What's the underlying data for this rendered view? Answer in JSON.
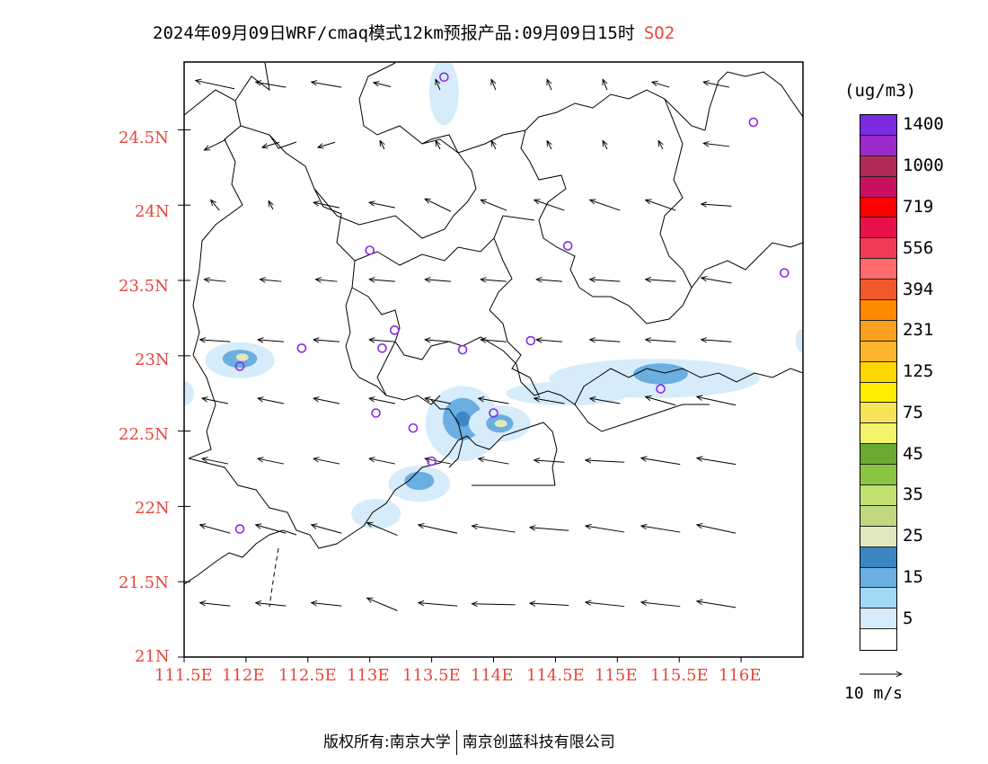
{
  "title": {
    "text": "2024年09月09日WRF/cmaq模式12km预报产品:09月09日15时",
    "pollutant": "SO2"
  },
  "map": {
    "lat_labels": [
      "24.5N",
      "24N",
      "23.5N",
      "23N",
      "22.5N",
      "22N",
      "21.5N",
      "21N"
    ],
    "lon_labels": [
      "111.5E",
      "112E",
      "112.5E",
      "113E",
      "113.5E",
      "114E",
      "114.5E",
      "115E",
      "115.5E",
      "116E"
    ],
    "lon_range": [
      111.5,
      116.5
    ],
    "lat_range": [
      21.0,
      24.95
    ],
    "colors": {
      "boundary": "#000000",
      "axis_label": "#e8453c",
      "station_marker": "#8a2be2"
    },
    "stations": [
      {
        "lon": 113.6,
        "lat": 24.85
      },
      {
        "lon": 116.1,
        "lat": 24.55
      },
      {
        "lon": 113.0,
        "lat": 23.7
      },
      {
        "lon": 114.6,
        "lat": 23.73
      },
      {
        "lon": 116.35,
        "lat": 23.55
      },
      {
        "lon": 113.2,
        "lat": 23.17
      },
      {
        "lon": 112.45,
        "lat": 23.05
      },
      {
        "lon": 113.1,
        "lat": 23.05
      },
      {
        "lon": 113.75,
        "lat": 23.04
      },
      {
        "lon": 114.3,
        "lat": 23.1
      },
      {
        "lon": 111.95,
        "lat": 22.93
      },
      {
        "lon": 115.35,
        "lat": 22.78
      },
      {
        "lon": 113.05,
        "lat": 22.62
      },
      {
        "lon": 113.35,
        "lat": 22.52
      },
      {
        "lon": 114.0,
        "lat": 22.62
      },
      {
        "lon": 113.5,
        "lat": 22.3
      },
      {
        "lon": 111.95,
        "lat": 21.85
      }
    ],
    "concentration_blobs": [
      {
        "lon": 111.95,
        "lat": 22.97,
        "rx": 0.28,
        "ry": 0.12,
        "level": 1
      },
      {
        "lon": 111.95,
        "lat": 22.98,
        "rx": 0.14,
        "ry": 0.06,
        "level": 3
      },
      {
        "lon": 111.97,
        "lat": 22.99,
        "rx": 0.05,
        "ry": 0.025,
        "level": 5
      },
      {
        "lon": 113.6,
        "lat": 24.75,
        "rx": 0.12,
        "ry": 0.22,
        "level": 1
      },
      {
        "lon": 113.75,
        "lat": 22.55,
        "rx": 0.3,
        "ry": 0.25,
        "level": 1
      },
      {
        "lon": 113.75,
        "lat": 22.58,
        "rx": 0.16,
        "ry": 0.14,
        "level": 3
      },
      {
        "lon": 113.75,
        "lat": 22.58,
        "rx": 0.06,
        "ry": 0.05,
        "level": 4
      },
      {
        "lon": 114.05,
        "lat": 22.55,
        "rx": 0.25,
        "ry": 0.12,
        "level": 1
      },
      {
        "lon": 114.05,
        "lat": 22.55,
        "rx": 0.11,
        "ry": 0.06,
        "level": 3
      },
      {
        "lon": 114.06,
        "lat": 22.55,
        "rx": 0.05,
        "ry": 0.025,
        "level": 5
      },
      {
        "lon": 113.4,
        "lat": 22.15,
        "rx": 0.25,
        "ry": 0.12,
        "level": 1
      },
      {
        "lon": 113.4,
        "lat": 22.17,
        "rx": 0.12,
        "ry": 0.06,
        "level": 3
      },
      {
        "lon": 113.05,
        "lat": 21.95,
        "rx": 0.2,
        "ry": 0.1,
        "level": 1
      },
      {
        "lon": 115.3,
        "lat": 22.85,
        "rx": 0.85,
        "ry": 0.13,
        "level": 1
      },
      {
        "lon": 115.35,
        "lat": 22.88,
        "rx": 0.22,
        "ry": 0.07,
        "level": 3
      },
      {
        "lon": 114.6,
        "lat": 22.75,
        "rx": 0.5,
        "ry": 0.08,
        "level": 1
      },
      {
        "lon": 111.5,
        "lat": 22.75,
        "rx": 0.08,
        "ry": 0.08,
        "level": 1
      },
      {
        "lon": 116.5,
        "lat": 23.1,
        "rx": 0.06,
        "ry": 0.08,
        "level": 1
      }
    ],
    "wind": {
      "rows": [
        {
          "lat": 24.8,
          "vectors": [
            [
              -0.45,
              0.08
            ],
            [
              -0.35,
              0.05
            ],
            [
              -0.35,
              0.05
            ],
            [
              -0.2,
              0.04
            ],
            [
              -0.05,
              0.1
            ],
            [
              -0.05,
              0.1
            ],
            [
              -0.05,
              0.1
            ],
            [
              -0.05,
              0.1
            ],
            [
              -0.2,
              0.05
            ],
            [
              -0.3,
              0.05
            ]
          ]
        },
        {
          "lat": 24.4,
          "vectors": [
            [
              -0.25,
              -0.1
            ],
            [
              -0.2,
              -0.05
            ],
            [
              -0.2,
              -0.05
            ],
            [
              -0.05,
              0.08
            ],
            [
              -0.05,
              0.08
            ],
            [
              -0.05,
              0.08
            ],
            [
              -0.05,
              0.08
            ],
            [
              -0.05,
              0.08
            ],
            [
              -0.05,
              0.08
            ],
            [
              -0.3,
              0.03
            ]
          ]
        },
        {
          "lat": 24.0,
          "vectors": [
            [
              -0.1,
              0.1
            ],
            [
              -0.05,
              0.08
            ],
            [
              -0.3,
              0.05
            ],
            [
              -0.3,
              0.05
            ],
            [
              -0.3,
              0.12
            ],
            [
              -0.3,
              0.1
            ],
            [
              -0.35,
              0.1
            ],
            [
              -0.35,
              0.1
            ],
            [
              -0.35,
              0.1
            ],
            [
              -0.35,
              0.02
            ]
          ]
        },
        {
          "lat": 23.5,
          "vectors": [
            [
              -0.25,
              0.02
            ],
            [
              -0.25,
              0.02
            ],
            [
              -0.25,
              0.02
            ],
            [
              -0.3,
              0.02
            ],
            [
              -0.3,
              0.02
            ],
            [
              -0.3,
              0.02
            ],
            [
              -0.3,
              0.02
            ],
            [
              -0.35,
              0.02
            ],
            [
              -0.35,
              0.02
            ],
            [
              -0.35,
              0.05
            ]
          ]
        },
        {
          "lat": 23.1,
          "vectors": [
            [
              -0.35,
              0.02
            ],
            [
              -0.3,
              0.02
            ],
            [
              -0.3,
              0.02
            ],
            [
              -0.3,
              0.02
            ],
            [
              -0.3,
              0.02
            ],
            [
              -0.3,
              0.02
            ],
            [
              -0.3,
              0.02
            ],
            [
              -0.35,
              0.02
            ],
            [
              -0.35,
              0.02
            ],
            [
              -0.35,
              0.02
            ]
          ]
        },
        {
          "lat": 22.7,
          "vectors": [
            [
              -0.3,
              0.05
            ],
            [
              -0.3,
              0.05
            ],
            [
              -0.3,
              0.05
            ],
            [
              -0.3,
              0.05
            ],
            [
              -0.3,
              0.05
            ],
            [
              -0.35,
              0.05
            ],
            [
              -0.35,
              0.05
            ],
            [
              -0.35,
              0.05
            ],
            [
              -0.35,
              0.08
            ],
            [
              -0.45,
              0.08
            ]
          ]
        },
        {
          "lat": 22.3,
          "vectors": [
            [
              -0.3,
              0.05
            ],
            [
              -0.3,
              0.05
            ],
            [
              -0.3,
              0.05
            ],
            [
              -0.3,
              0.05
            ],
            [
              -0.3,
              0.05
            ],
            [
              -0.35,
              0.05
            ],
            [
              -0.35,
              0.02
            ],
            [
              -0.45,
              0.02
            ],
            [
              -0.45,
              0.06
            ],
            [
              -0.45,
              0.06
            ]
          ]
        },
        {
          "lat": 21.85,
          "vectors": [
            [
              -0.35,
              0.08
            ],
            [
              -0.35,
              0.08
            ],
            [
              -0.35,
              0.08
            ],
            [
              -0.35,
              0.12
            ],
            [
              -0.45,
              0.08
            ],
            [
              -0.5,
              0.06
            ],
            [
              -0.45,
              0.03
            ],
            [
              -0.45,
              0.06
            ],
            [
              -0.45,
              0.06
            ],
            [
              -0.45,
              0.08
            ]
          ]
        },
        {
          "lat": 21.35,
          "vectors": [
            [
              -0.35,
              0.03
            ],
            [
              -0.35,
              0.03
            ],
            [
              -0.35,
              0.03
            ],
            [
              -0.35,
              0.12
            ],
            [
              -0.45,
              0.03
            ],
            [
              -0.5,
              0.01
            ],
            [
              -0.45,
              0.02
            ],
            [
              -0.45,
              0.04
            ],
            [
              -0.45,
              0.04
            ],
            [
              -0.45,
              0.06
            ]
          ]
        }
      ],
      "lon_start": 111.75,
      "lon_step": 0.45
    }
  },
  "legend": {
    "unit": "(ug/m3)",
    "colors": [
      "#ffffff",
      "#d6ecfa",
      "#a3d8f5",
      "#6baee0",
      "#3a87c4",
      "#dfe9bd",
      "#c1d97e",
      "#c0e070",
      "#8bc440",
      "#6aaa32",
      "#f2f36a",
      "#f7e35a",
      "#ffed00",
      "#ffd700",
      "#fbb42e",
      "#f9a020",
      "#ff8a00",
      "#f05a28",
      "#ff6b6b",
      "#f23a55",
      "#e8124a",
      "#ff0000",
      "#c8105e",
      "#b22a5a",
      "#9a2bc8",
      "#7b2be0"
    ],
    "labels": [
      "5",
      "15",
      "25",
      "35",
      "45",
      "75",
      "125",
      "231",
      "394",
      "556",
      "719",
      "1000",
      "1400"
    ],
    "wind_ref_label": "10 m/s"
  },
  "footer": {
    "copyright": "版权所有:",
    "org1": "南京大学",
    "org2": "南京创蓝科技有限公司"
  }
}
